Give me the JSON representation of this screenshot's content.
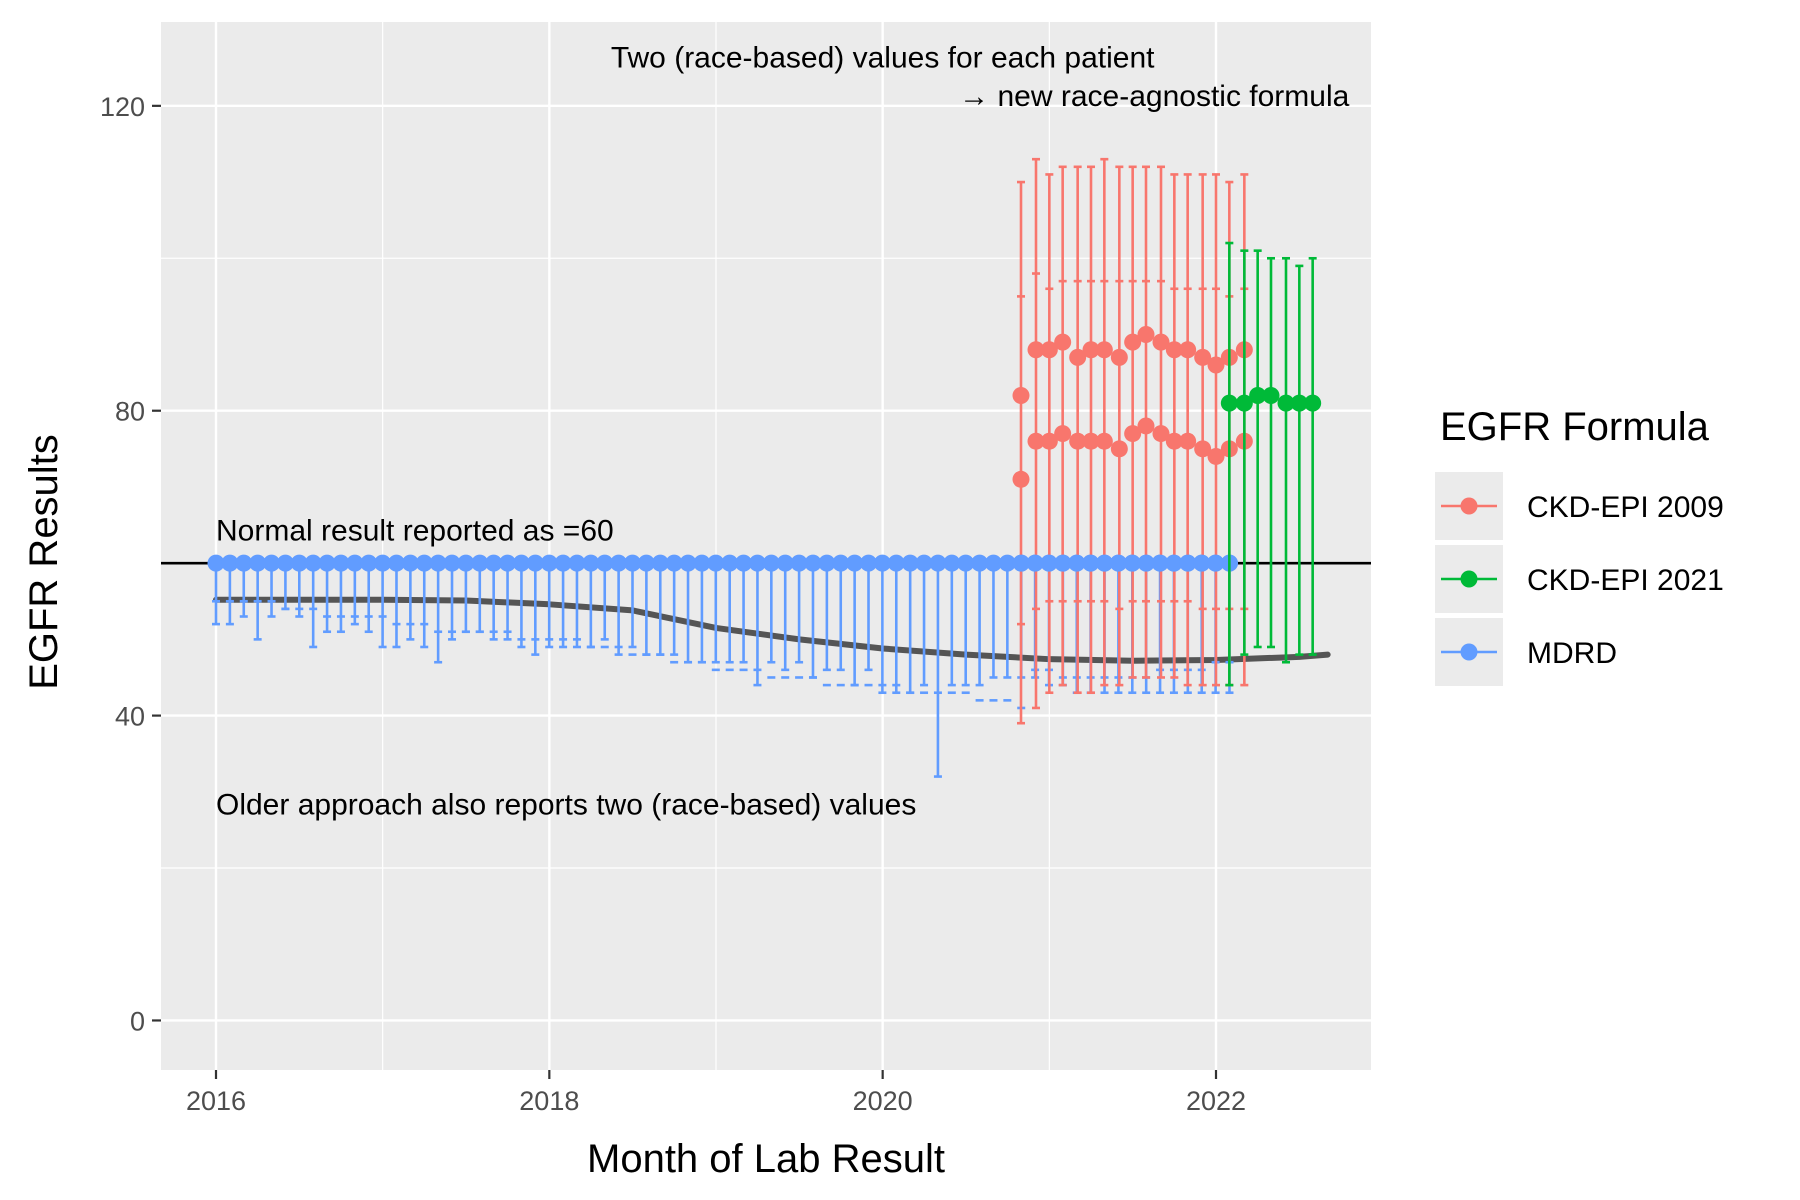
{
  "chart_data": {
    "type": "scatter",
    "xlabel": "Month of Lab Result",
    "ylabel": "EGFR Results",
    "xlim": [
      2015.67,
      2022.93
    ],
    "ylim": [
      -6.5,
      131
    ],
    "x_ticks": [
      2016,
      2018,
      2020,
      2022
    ],
    "y_ticks": [
      0,
      40,
      80,
      120
    ],
    "grid": true,
    "reference_line": {
      "y": 60
    },
    "annotations": [
      {
        "text": "Two (race-based) values for each patient",
        "x": 2020.0,
        "y": 125,
        "anchor": "middle"
      },
      {
        "text": "→ new race-agnostic formula",
        "x": 2022.8,
        "y": 120,
        "anchor": "end"
      },
      {
        "text": "Normal result reported as =60",
        "x": 2016.0,
        "y": 63,
        "anchor": "start"
      },
      {
        "text": "Older approach also reports two (race-based) values",
        "x": 2016.0,
        "y": 27,
        "anchor": "start"
      }
    ],
    "legend": {
      "title": "EGFR Formula",
      "position": "right",
      "entries": [
        "CKD-EPI 2009",
        "CKD-EPI 2021",
        "MDRD"
      ]
    },
    "trend_line": {
      "color": "#555555",
      "x": [
        2016.0,
        2016.5,
        2017.0,
        2017.5,
        2018.0,
        2018.5,
        2019.0,
        2019.5,
        2020.0,
        2020.5,
        2021.0,
        2021.5,
        2022.0,
        2022.5,
        2022.67
      ],
      "y": [
        55.2,
        55.2,
        55.2,
        55.1,
        54.6,
        53.8,
        51.5,
        50.0,
        48.8,
        48.0,
        47.4,
        47.2,
        47.3,
        47.7,
        48.0
      ]
    },
    "series": [
      {
        "name": "MDRD",
        "color": "#619CFF",
        "x_start": 2016.0,
        "x_end": 2022.17,
        "step": 0.0833,
        "y": 60,
        "mid_markers": [
          55,
          55,
          55,
          55,
          55,
          54,
          54,
          54,
          53,
          53,
          53,
          53,
          53,
          52,
          52,
          52,
          51,
          51,
          51,
          51,
          51,
          51,
          50,
          50,
          50,
          50,
          50,
          49,
          49,
          49,
          48,
          48,
          48,
          47,
          47,
          47,
          46,
          46,
          46,
          46,
          45,
          45,
          45,
          45,
          44,
          44,
          44,
          44,
          44,
          44,
          43,
          43,
          43,
          43,
          43,
          42,
          42,
          42,
          41,
          46,
          46,
          45,
          45,
          45,
          45,
          45,
          45,
          45,
          46,
          46,
          46,
          46,
          47,
          47
        ],
        "lower": [
          52,
          52,
          53,
          50,
          53,
          54,
          53,
          49,
          51,
          51,
          52,
          51,
          49,
          49,
          50,
          49,
          47,
          50,
          51,
          51,
          50,
          50,
          49,
          48,
          49,
          49,
          49,
          49,
          50,
          48,
          49,
          48,
          48,
          48,
          47,
          47,
          47,
          47,
          47,
          44,
          47,
          46,
          47,
          45,
          46,
          46,
          44,
          46,
          43,
          43,
          43,
          44,
          32,
          44,
          44,
          44,
          45,
          45,
          45,
          45,
          44,
          44,
          43,
          43,
          43,
          43,
          43,
          43,
          43,
          43,
          43,
          43,
          43,
          43
        ]
      },
      {
        "name": "CKD-EPI 2009",
        "color": "#F8766D",
        "x": [
          2020.83,
          2020.92,
          2021.0,
          2021.08,
          2021.17,
          2021.25,
          2021.33,
          2021.42,
          2021.5,
          2021.58,
          2021.67,
          2021.75,
          2021.83,
          2021.92,
          2022.0,
          2022.08,
          2022.17
        ],
        "high": [
          82,
          88,
          88,
          89,
          87,
          88,
          88,
          87,
          89,
          90,
          89,
          88,
          88,
          87,
          86,
          87,
          88
        ],
        "low": [
          71,
          76,
          76,
          77,
          76,
          76,
          76,
          75,
          77,
          78,
          77,
          76,
          76,
          75,
          74,
          75,
          76
        ],
        "upper": [
          110,
          113,
          111,
          112,
          112,
          112,
          113,
          112,
          112,
          112,
          112,
          111,
          111,
          111,
          111,
          110,
          111
        ],
        "upper_mid": [
          95,
          98,
          96,
          97,
          97,
          97,
          97,
          97,
          97,
          97,
          97,
          96,
          96,
          96,
          96,
          95,
          96
        ],
        "lower": [
          39,
          41,
          43,
          44,
          43,
          43,
          44,
          44,
          45,
          45,
          45,
          45,
          44,
          44,
          44,
          44,
          44
        ],
        "lower_mid": [
          52,
          54,
          55,
          55,
          55,
          55,
          55,
          54,
          55,
          55,
          55,
          55,
          55,
          54,
          54,
          54,
          54
        ]
      },
      {
        "name": "CKD-EPI 2021",
        "color": "#00BA38",
        "x": [
          2022.08,
          2022.17,
          2022.25,
          2022.33,
          2022.42,
          2022.5,
          2022.58
        ],
        "values": [
          81,
          81,
          82,
          82,
          81,
          81,
          81
        ],
        "upper": [
          102,
          101,
          101,
          100,
          100,
          99,
          100
        ],
        "lower": [
          44,
          48,
          49,
          49,
          47,
          48,
          48
        ]
      }
    ]
  }
}
